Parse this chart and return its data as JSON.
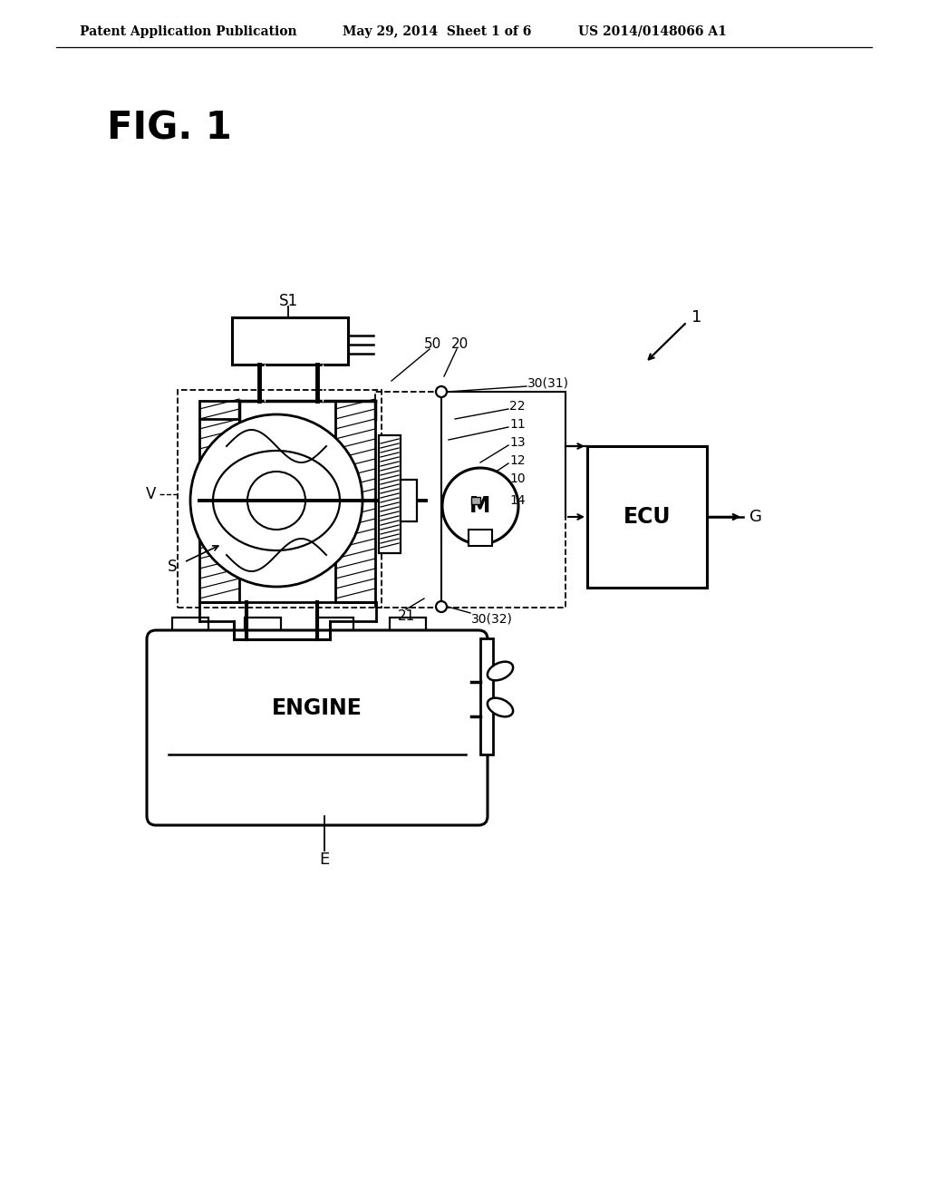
{
  "bg": "#ffffff",
  "header_left": "Patent Application Publication",
  "header_mid": "May 29, 2014  Sheet 1 of 6",
  "header_right": "US 2014/0148066 A1",
  "fig_label": "FIG. 1"
}
